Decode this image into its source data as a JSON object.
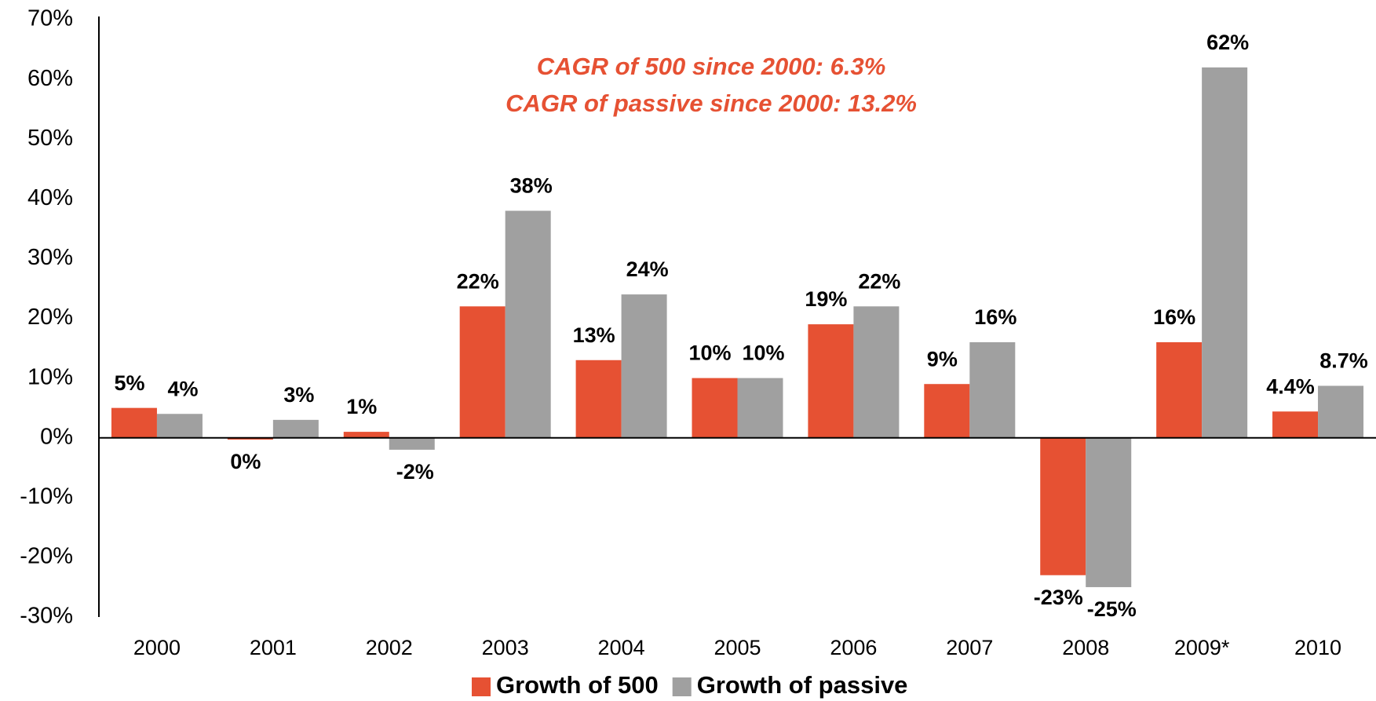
{
  "chart_data": {
    "type": "bar",
    "annotations": [
      "CAGR of 500 since 2000: 6.3%",
      "CAGR of passive since 2000: 13.2%"
    ],
    "categories": [
      "2000",
      "2001",
      "2002",
      "2003",
      "2004",
      "2005",
      "2006",
      "2007",
      "2008",
      "2009*",
      "2010"
    ],
    "series": [
      {
        "name": "Growth of 500",
        "color": "#e65133",
        "values": [
          5,
          -0.3,
          1,
          22,
          13,
          10,
          19,
          9,
          -23,
          16,
          4.4
        ],
        "value_labels": [
          "5%",
          "0%",
          "1%",
          "22%",
          "13%",
          "10%",
          "19%",
          "9%",
          "-23%",
          "16%",
          "4.4%"
        ]
      },
      {
        "name": "Growth of passive",
        "color": "#a0a0a0",
        "values": [
          4,
          3,
          -2,
          38,
          24,
          10,
          22,
          16,
          -25,
          62,
          8.7
        ],
        "value_labels": [
          "4%",
          "3%",
          "-2%",
          "38%",
          "24%",
          "10%",
          "22%",
          "16%",
          "-25%",
          "62%",
          "8.7%"
        ]
      }
    ],
    "ylim": [
      -30,
      70
    ],
    "yticks": [
      {
        "value": -30,
        "label": "-30%"
      },
      {
        "value": -20,
        "label": "-20%"
      },
      {
        "value": -10,
        "label": "-10%"
      },
      {
        "value": 0,
        "label": "0%"
      },
      {
        "value": 10,
        "label": "10%"
      },
      {
        "value": 20,
        "label": "20%"
      },
      {
        "value": 30,
        "label": "30%"
      },
      {
        "value": 40,
        "label": "40%"
      },
      {
        "value": 50,
        "label": "50%"
      },
      {
        "value": 60,
        "label": "60%"
      },
      {
        "value": 70,
        "label": "70%"
      }
    ],
    "grid": false
  }
}
